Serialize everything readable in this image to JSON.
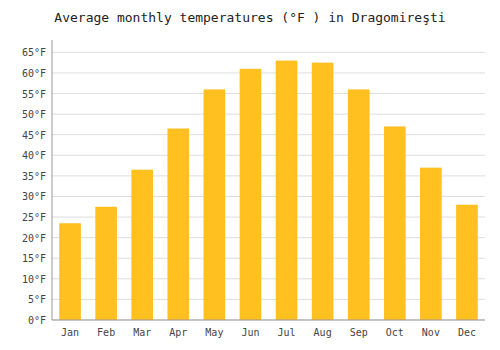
{
  "chart_data": {
    "type": "bar",
    "title": "Average monthly temperatures (°F ) in Dragomireşti",
    "categories": [
      "Jan",
      "Feb",
      "Mar",
      "Apr",
      "May",
      "Jun",
      "Jul",
      "Aug",
      "Sep",
      "Oct",
      "Nov",
      "Dec"
    ],
    "values": [
      23.5,
      27.5,
      36.5,
      46.5,
      56.0,
      61.0,
      63.0,
      62.5,
      56.0,
      47.0,
      37.0,
      28.0
    ],
    "color": "#FFC020",
    "ylim": [
      0,
      68
    ],
    "yticks": [
      {
        "value": 0,
        "label": "0°F"
      },
      {
        "value": 5,
        "label": "5°F"
      },
      {
        "value": 10,
        "label": "10°F"
      },
      {
        "value": 15,
        "label": "15°F"
      },
      {
        "value": 20,
        "label": "20°F"
      },
      {
        "value": 25,
        "label": "25°F"
      },
      {
        "value": 30,
        "label": "30°F"
      },
      {
        "value": 35,
        "label": "35°F"
      },
      {
        "value": 40,
        "label": "40°F"
      },
      {
        "value": 45,
        "label": "45°F"
      },
      {
        "value": 50,
        "label": "50°F"
      },
      {
        "value": 55,
        "label": "55°F"
      },
      {
        "value": 60,
        "label": "60°F"
      },
      {
        "value": 65,
        "label": "65°F"
      }
    ],
    "grid": true
  }
}
